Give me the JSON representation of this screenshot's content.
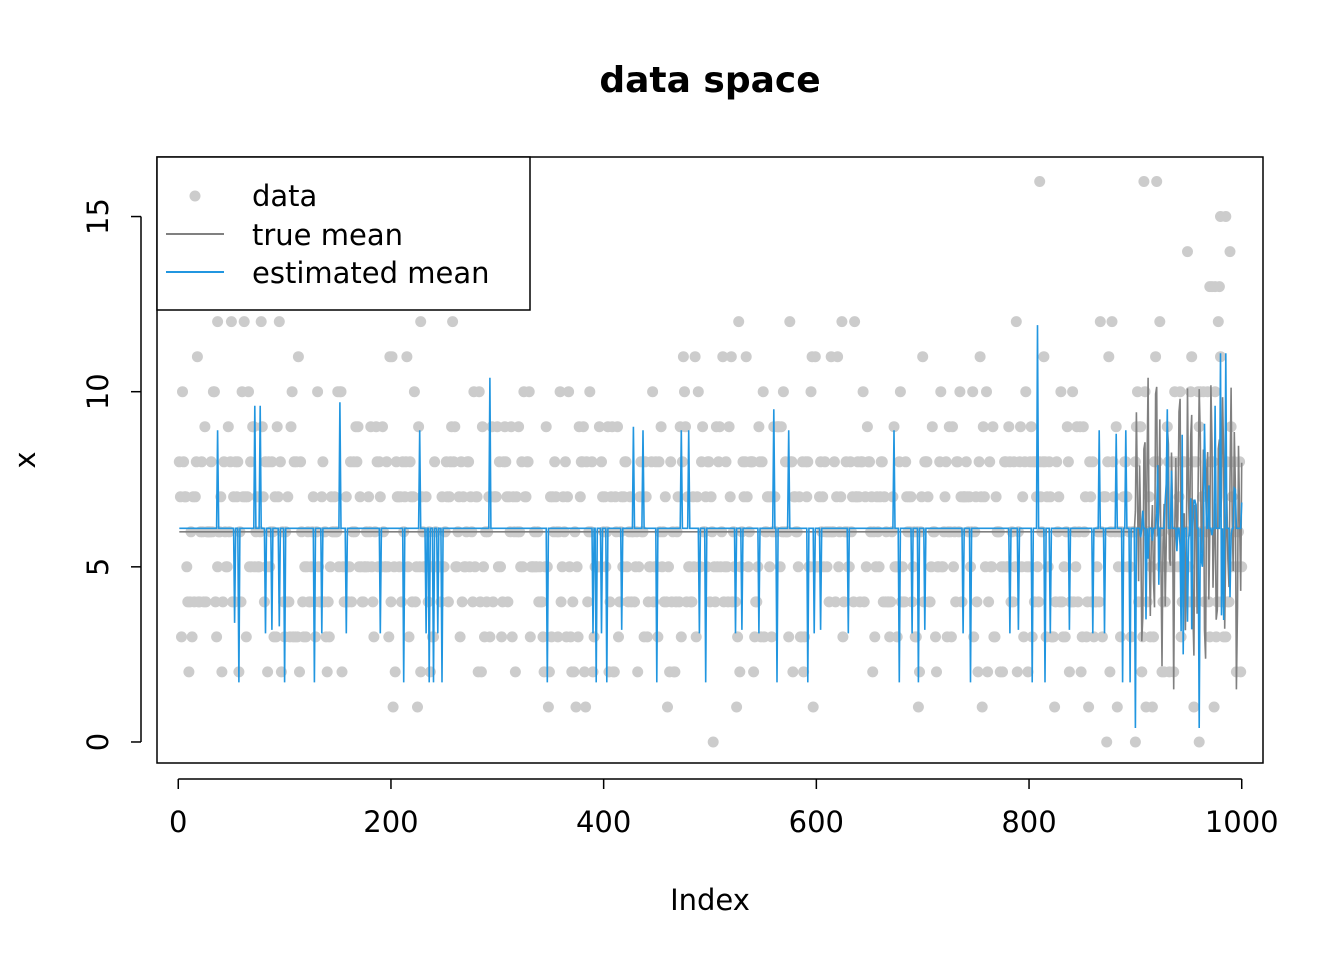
{
  "chart_data": {
    "type": "scatter",
    "title": "data space",
    "xlabel": "Index",
    "ylabel": "x",
    "xlim": [
      -20,
      1020
    ],
    "ylim": [
      -0.6,
      16.7
    ],
    "xticks": [
      0,
      200,
      400,
      600,
      800,
      1000
    ],
    "xtick_labels": [
      "0",
      "200",
      "400",
      "600",
      "800",
      "1000"
    ],
    "yticks": [
      0,
      5,
      10,
      15
    ],
    "ytick_labels": [
      "0",
      "5",
      "10",
      "15"
    ],
    "grid": false,
    "legend_position": "top-left",
    "legend": [
      {
        "label": "data",
        "kind": "point",
        "color": "#cccccc"
      },
      {
        "label": "true mean",
        "kind": "line",
        "color": "#808080"
      },
      {
        "label": "estimated mean",
        "kind": "line",
        "color": "#2196e0"
      }
    ],
    "series": [
      {
        "name": "data",
        "kind": "points",
        "color": "#cccccc",
        "generator": "poisson",
        "n": 1000,
        "mean_before_900": 6,
        "seed": 7,
        "notable": [
          [
            37,
            12
          ],
          [
            228,
            12
          ],
          [
            810,
            16
          ],
          [
            900,
            0
          ],
          [
            960,
            0
          ],
          [
            980,
            15
          ],
          [
            985,
            15
          ],
          [
            970,
            13
          ],
          [
            975,
            13
          ]
        ]
      },
      {
        "name": "true mean",
        "kind": "line",
        "color": "#808080",
        "baseline": 6,
        "regime_change_at": 900,
        "after_min": 1.5,
        "after_max": 10.4
      },
      {
        "name": "estimated mean",
        "kind": "line",
        "color": "#2196e0",
        "baseline": 6.1,
        "spikes": [
          [
            37,
            8.9
          ],
          [
            53,
            3.4
          ],
          [
            57,
            1.7
          ],
          [
            72,
            9.6
          ],
          [
            77,
            9.6
          ],
          [
            82,
            3.1
          ],
          [
            88,
            3.2
          ],
          [
            95,
            3.3
          ],
          [
            100,
            1.7
          ],
          [
            128,
            1.7
          ],
          [
            135,
            3.1
          ],
          [
            152,
            9.7
          ],
          [
            158,
            3.1
          ],
          [
            190,
            3.1
          ],
          [
            212,
            1.7
          ],
          [
            227,
            8.9
          ],
          [
            233,
            3.1
          ],
          [
            236,
            1.7
          ],
          [
            240,
            1.7
          ],
          [
            244,
            3.1
          ],
          [
            248,
            1.7
          ],
          [
            293,
            10.4
          ],
          [
            347,
            1.7
          ],
          [
            390,
            3.1
          ],
          [
            393,
            1.7
          ],
          [
            398,
            3.1
          ],
          [
            403,
            1.7
          ],
          [
            417,
            3.2
          ],
          [
            428,
            9.0
          ],
          [
            437,
            8.9
          ],
          [
            450,
            1.7
          ],
          [
            473,
            8.9
          ],
          [
            480,
            8.9
          ],
          [
            490,
            3.1
          ],
          [
            496,
            1.7
          ],
          [
            524,
            3.1
          ],
          [
            530,
            3.2
          ],
          [
            546,
            3.1
          ],
          [
            560,
            9.5
          ],
          [
            563,
            1.7
          ],
          [
            574,
            8.9
          ],
          [
            592,
            1.7
          ],
          [
            598,
            3.1
          ],
          [
            604,
            3.2
          ],
          [
            630,
            3.1
          ],
          [
            673,
            8.9
          ],
          [
            678,
            1.7
          ],
          [
            690,
            3.1
          ],
          [
            696,
            1.7
          ],
          [
            702,
            3.2
          ],
          [
            738,
            3.1
          ],
          [
            745,
            1.7
          ],
          [
            782,
            3.1
          ],
          [
            790,
            3.2
          ],
          [
            803,
            1.7
          ],
          [
            808,
            11.9
          ],
          [
            815,
            1.7
          ],
          [
            820,
            3.1
          ],
          [
            838,
            3.2
          ],
          [
            860,
            3.1
          ],
          [
            866,
            8.9
          ],
          [
            871,
            3.1
          ],
          [
            882,
            8.8
          ],
          [
            888,
            1.7
          ],
          [
            891,
            8.9
          ],
          [
            895,
            1.7
          ],
          [
            900,
            0.4
          ],
          [
            910,
            3.5
          ],
          [
            930,
            9.5
          ],
          [
            945,
            2.5
          ],
          [
            960,
            0.4
          ],
          [
            975,
            9.6
          ],
          [
            980,
            11.1
          ],
          [
            985,
            11.1
          ],
          [
            990,
            5.9
          ]
        ]
      }
    ]
  }
}
